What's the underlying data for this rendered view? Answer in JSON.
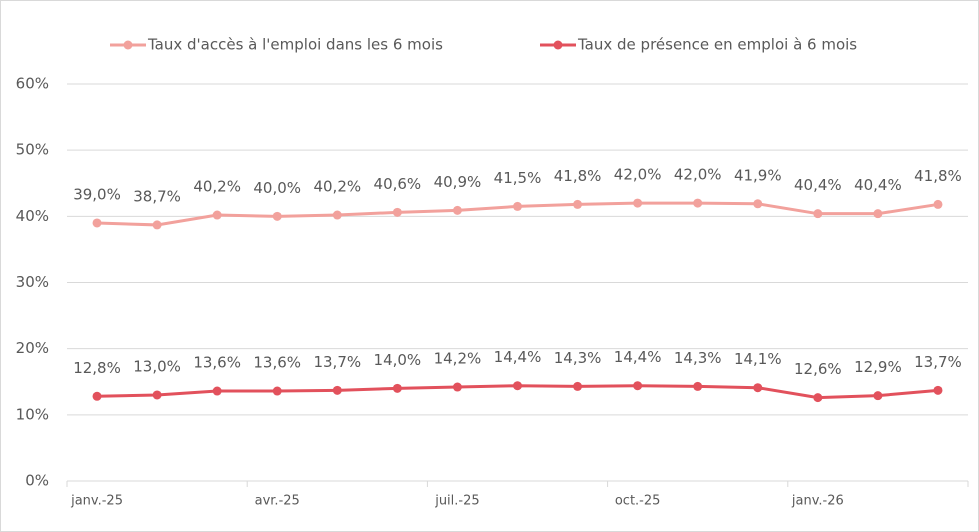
{
  "chart_data": {
    "type": "line",
    "categories": [
      "janv.-25",
      null,
      null,
      "avr.-25",
      null,
      null,
      "juil.-25",
      null,
      null,
      "oct.-25",
      null,
      null,
      "janv.-26",
      null,
      null
    ],
    "series": [
      {
        "name": "Taux d'accès à l'emploi dans les 6 mois",
        "color": "#f2a19c",
        "values": [
          39.0,
          38.7,
          40.2,
          40.0,
          40.2,
          40.6,
          40.9,
          41.5,
          41.8,
          42.0,
          42.0,
          41.9,
          40.4,
          40.4,
          41.8
        ],
        "value_labels": [
          "39,0%",
          "38,7%",
          "40,2%",
          "40,0%",
          "40,2%",
          "40,6%",
          "40,9%",
          "41,5%",
          "41,8%",
          "42,0%",
          "42,0%",
          "41,9%",
          "40,4%",
          "40,4%",
          "41,8%"
        ]
      },
      {
        "name": "Taux de présence en emploi à 6 mois",
        "color": "#e2515c",
        "values": [
          12.8,
          13.0,
          13.6,
          13.6,
          13.7,
          14.0,
          14.2,
          14.4,
          14.3,
          14.4,
          14.3,
          14.1,
          12.6,
          12.9,
          13.7
        ],
        "value_labels": [
          "12,8%",
          "13,0%",
          "13,6%",
          "13,6%",
          "13,7%",
          "14,0%",
          "14,2%",
          "14,4%",
          "14,3%",
          "14,4%",
          "14,3%",
          "14,1%",
          "12,6%",
          "12,9%",
          "13,7%"
        ]
      }
    ],
    "ylim": [
      0,
      60
    ],
    "yticks": [
      {
        "value": 0,
        "label": "0%"
      },
      {
        "value": 10,
        "label": "10%"
      },
      {
        "value": 20,
        "label": "20%"
      },
      {
        "value": 30,
        "label": "30%"
      },
      {
        "value": 40,
        "label": "40%"
      },
      {
        "value": 50,
        "label": "50%"
      },
      {
        "value": 60,
        "label": "60%"
      }
    ],
    "grid": true,
    "legend": "top"
  }
}
